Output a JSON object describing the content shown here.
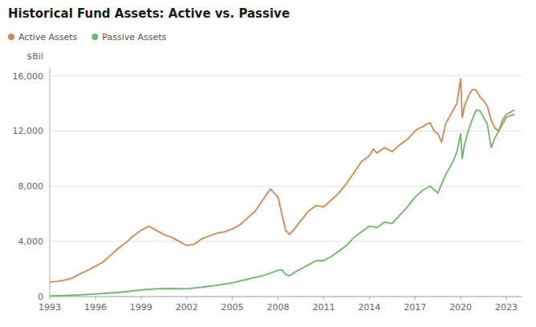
{
  "chart_data": {
    "type": "line",
    "title": "Historical Fund Assets: Active vs. Passive",
    "ylabel": "$Bil",
    "xlim": [
      1993,
      2024
    ],
    "xticks": [
      1993,
      1996,
      1999,
      2002,
      2005,
      2008,
      2011,
      2014,
      2017,
      2020,
      2023
    ],
    "ylim": [
      0,
      16500
    ],
    "yticks": [
      0,
      {
        "value": 4000,
        "label": "4,000"
      },
      {
        "value": 8000,
        "label": "8,000"
      },
      {
        "value": 12000,
        "label": "12,000"
      },
      {
        "value": 16000,
        "label": "16,000"
      }
    ],
    "grid": true,
    "legend": "upper left",
    "series": [
      {
        "name": "Active Assets",
        "color": "#D4874E",
        "x": [
          1993.0,
          1993.5,
          1994.0,
          1994.5,
          1995.0,
          1995.5,
          1996.0,
          1996.5,
          1997.0,
          1997.5,
          1998.0,
          1998.5,
          1999.0,
          1999.5,
          2000.0,
          2000.5,
          2001.0,
          2001.5,
          2002.0,
          2002.5,
          2003.0,
          2003.5,
          2004.0,
          2004.5,
          2005.0,
          2005.5,
          2006.0,
          2006.5,
          2007.0,
          2007.5,
          2008.0,
          2008.25,
          2008.5,
          2008.75,
          2009.0,
          2009.5,
          2010.0,
          2010.5,
          2011.0,
          2011.5,
          2012.0,
          2012.5,
          2013.0,
          2013.5,
          2014.0,
          2014.25,
          2014.5,
          2014.75,
          2015.0,
          2015.5,
          2016.0,
          2016.5,
          2017.0,
          2017.25,
          2017.5,
          2017.75,
          2018.0,
          2018.25,
          2018.5,
          2018.75,
          2019.0,
          2019.5,
          2019.75,
          2020.0,
          2020.1,
          2020.25,
          2020.5,
          2020.75,
          2021.0,
          2021.25,
          2021.5,
          2021.75,
          2022.0,
          2022.25,
          2022.5,
          2022.75,
          2023.0,
          2023.5
        ],
        "values": [
          1050,
          1100,
          1200,
          1350,
          1650,
          1900,
          2200,
          2500,
          3000,
          3500,
          3900,
          4400,
          4800,
          5100,
          4800,
          4500,
          4300,
          4000,
          3700,
          3800,
          4200,
          4400,
          4600,
          4700,
          4900,
          5200,
          5700,
          6200,
          7000,
          7800,
          7200,
          6000,
          4800,
          4500,
          4800,
          5500,
          6200,
          6600,
          6500,
          7000,
          7500,
          8200,
          9000,
          9800,
          10200,
          10700,
          10400,
          10600,
          10800,
          10500,
          11000,
          11400,
          12000,
          12200,
          12300,
          12500,
          12600,
          12000,
          11800,
          11200,
          12500,
          13500,
          14000,
          15800,
          13000,
          13800,
          14500,
          15000,
          15000,
          14500,
          14200,
          13800,
          12800,
          12200,
          12000,
          12500,
          13000,
          13200
        ]
      },
      {
        "name": "Passive Assets",
        "color": "#6BB86A",
        "x": [
          1993.0,
          1994.0,
          1995.0,
          1996.0,
          1997.0,
          1998.0,
          1999.0,
          2000.0,
          2001.0,
          2002.0,
          2003.0,
          2004.0,
          2005.0,
          2006.0,
          2007.0,
          2007.5,
          2008.0,
          2008.25,
          2008.5,
          2008.75,
          2009.0,
          2009.5,
          2010.0,
          2010.5,
          2011.0,
          2011.5,
          2012.0,
          2012.5,
          2013.0,
          2013.5,
          2014.0,
          2014.5,
          2015.0,
          2015.5,
          2016.0,
          2016.5,
          2017.0,
          2017.5,
          2018.0,
          2018.5,
          2019.0,
          2019.5,
          2019.75,
          2020.0,
          2020.1,
          2020.25,
          2020.5,
          2020.75,
          2021.0,
          2021.25,
          2021.5,
          2021.75,
          2022.0,
          2022.25,
          2022.5,
          2022.75,
          2023.0,
          2023.5
        ],
        "values": [
          50,
          80,
          120,
          180,
          260,
          350,
          480,
          560,
          580,
          560,
          680,
          820,
          1000,
          1250,
          1520,
          1700,
          1900,
          1950,
          1600,
          1500,
          1700,
          2000,
          2300,
          2600,
          2600,
          2900,
          3300,
          3700,
          4300,
          4700,
          5100,
          5000,
          5400,
          5300,
          5900,
          6500,
          7200,
          7700,
          8000,
          7500,
          8800,
          9800,
          10500,
          11800,
          10000,
          11000,
          12000,
          12800,
          13500,
          13500,
          13000,
          12500,
          10800,
          11500,
          12000,
          12800,
          13200,
          13500
        ]
      }
    ]
  }
}
